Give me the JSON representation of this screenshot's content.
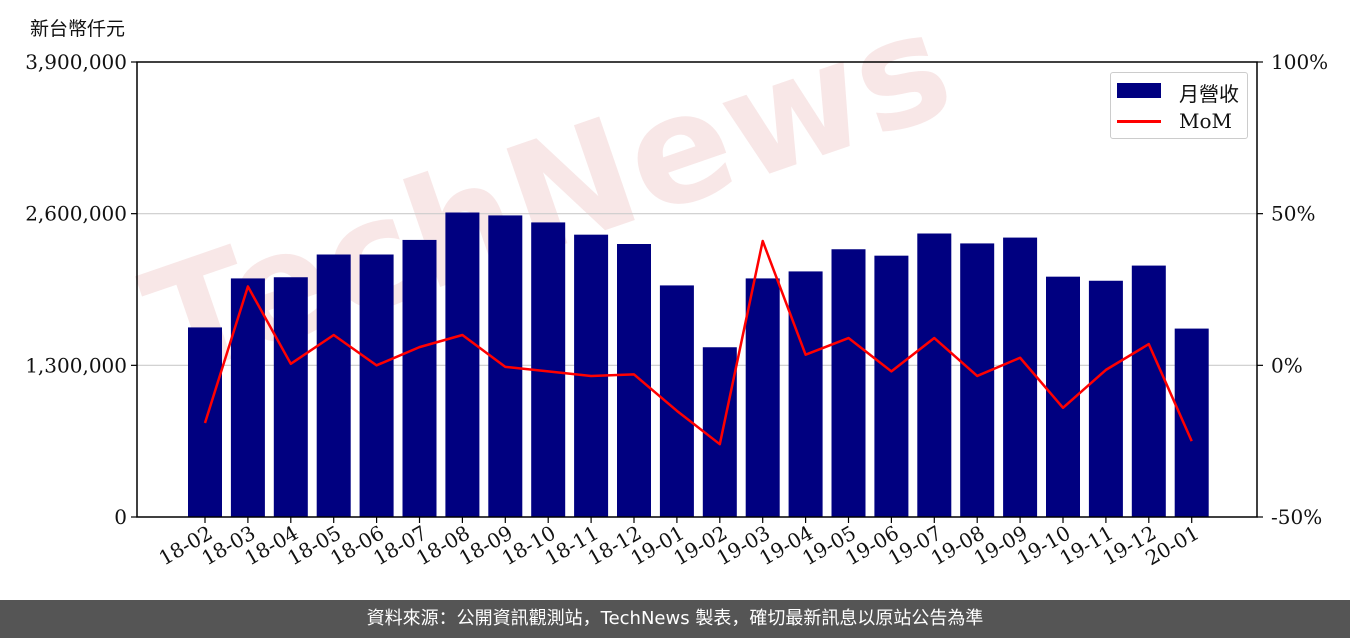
{
  "unit_label": "新台幣仟元",
  "footer_text": "資料來源：公開資訊觀測站，TechNews 製表，確切最新訊息以原站公告為準",
  "watermark_text": "TechNews",
  "colors": {
    "bar": "#000080",
    "line": "#ff0000",
    "grid": "#cccccc",
    "footer_bg": "#555555"
  },
  "chart_data": {
    "type": "bar",
    "categories": [
      "18-02",
      "18-03",
      "18-04",
      "18-05",
      "18-06",
      "18-07",
      "18-08",
      "18-09",
      "18-10",
      "18-11",
      "18-12",
      "19-01",
      "19-02",
      "19-03",
      "19-04",
      "19-05",
      "19-06",
      "19-07",
      "19-08",
      "19-09",
      "19-10",
      "19-11",
      "19-12",
      "20-01"
    ],
    "series": [
      {
        "name": "月營收",
        "type": "bar",
        "axis": "left",
        "values": [
          1625000,
          2045000,
          2055000,
          2250000,
          2250000,
          2375000,
          2610000,
          2585000,
          2525000,
          2420000,
          2340000,
          1985000,
          1455000,
          2045000,
          2105000,
          2295000,
          2240000,
          2430000,
          2345000,
          2395000,
          2060000,
          2025000,
          2155000,
          1615000
        ]
      },
      {
        "name": "MoM",
        "type": "line",
        "axis": "right",
        "values": [
          -19,
          26,
          0.5,
          10,
          0,
          6,
          10,
          -0.5,
          -2,
          -3.5,
          -3,
          -15,
          -26,
          41,
          3.5,
          9,
          -2,
          9,
          -3.5,
          2.5,
          -14,
          -1.5,
          7,
          -25
        ]
      }
    ],
    "left_axis": {
      "ylim": [
        0,
        3900000
      ],
      "ticks": [
        "0",
        "1,300,000",
        "2,600,000",
        "3,900,000"
      ]
    },
    "right_axis": {
      "ylim": [
        -50,
        100
      ],
      "ticks": [
        "-50%",
        "0%",
        "50%",
        "100%"
      ]
    },
    "grid": "horizontal",
    "legend": "top-right"
  }
}
